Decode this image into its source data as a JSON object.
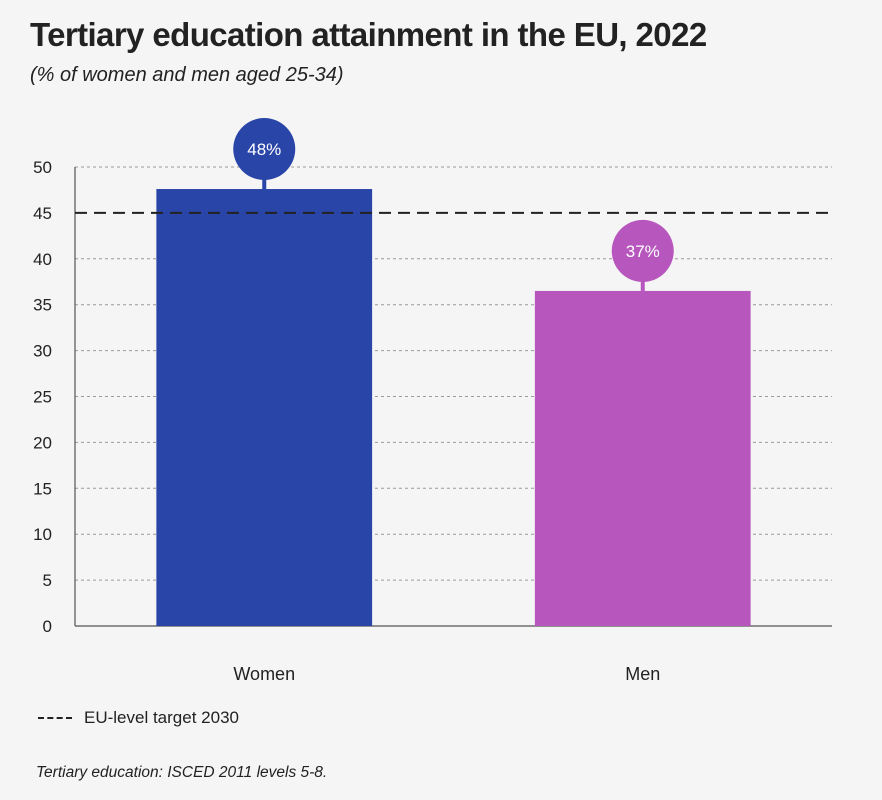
{
  "chart_data": {
    "type": "bar",
    "title": "Tertiary education attainment in the EU, 2022",
    "subtitle": "(% of women and men aged 25-34)",
    "categories": [
      "Women",
      "Men"
    ],
    "values": [
      47.6,
      36.5
    ],
    "data_labels": [
      "48%",
      "37%"
    ],
    "bar_colors": [
      "#2a45a8",
      "#b757be"
    ],
    "ylim": [
      0,
      50
    ],
    "yticks": [
      "0",
      "5",
      "10",
      "15",
      "20",
      "25",
      "30",
      "35",
      "40",
      "45",
      "50"
    ],
    "grid": true,
    "reference_line": {
      "value": 45,
      "label": "EU-level target 2030",
      "style": "dashed",
      "color": "#222222"
    },
    "legend_position": "bottom-left",
    "footnote": "Tertiary education: ISCED 2011 levels 5-8."
  }
}
